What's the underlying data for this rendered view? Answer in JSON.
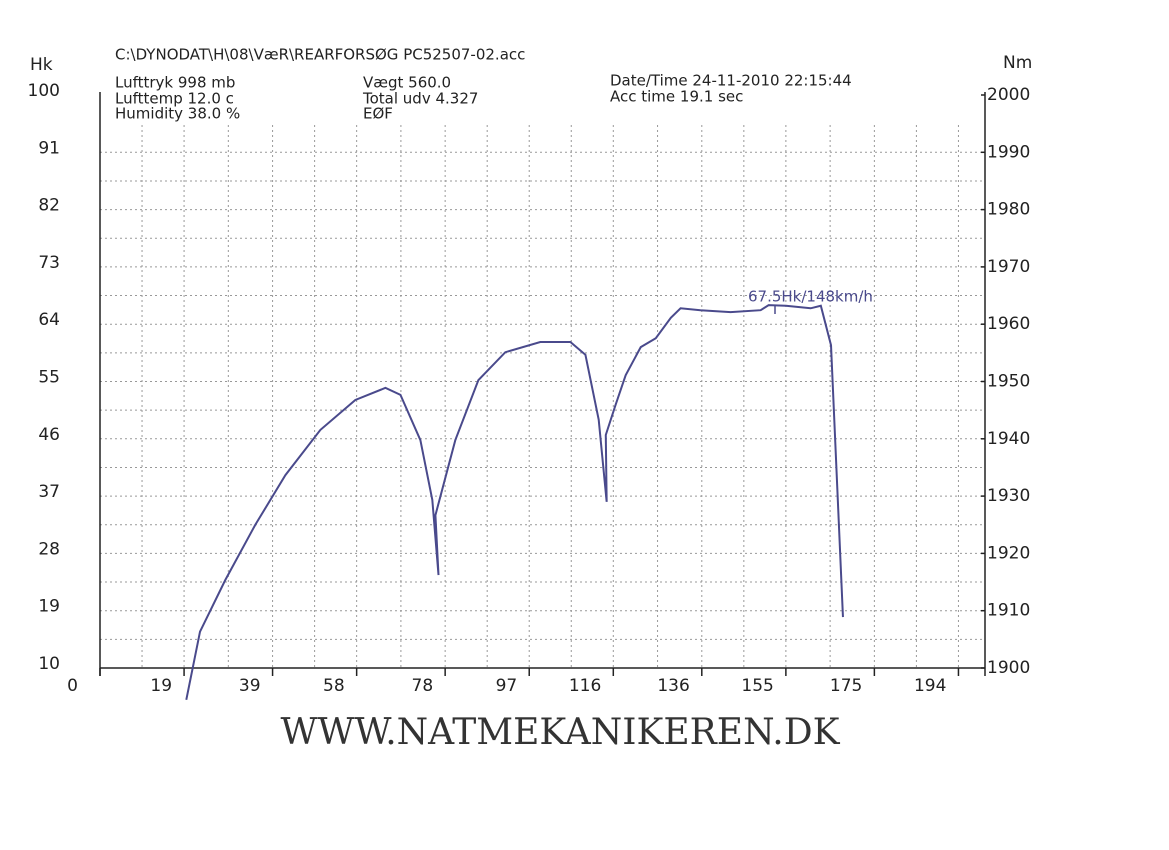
{
  "chart_data": {
    "type": "line",
    "file": "C:\\DYNODAT\\H\\08\\VæR\\REARFORSØG PC52507-02.acc",
    "info": [
      "Lufttryk  998 mb",
      "Lufttemp  12.0 c",
      "Humidity  38.0 %",
      "Vægt   560.0",
      "Total udv 4.327",
      "EØF",
      "Date/Time  24-11-2010 22:15:44",
      "Acc time  19.1 sec"
    ],
    "y_label": "Hk",
    "y2_label": "Nm",
    "annotation": "67.5Hk/148km/h",
    "footer": "WWW.NATMEKANIKEREN.DK",
    "xlim": [
      0,
      200
    ],
    "xticks": [
      0,
      19,
      39,
      58,
      78,
      97,
      116,
      136,
      155,
      175,
      194
    ],
    "ylim": [
      10,
      100
    ],
    "yticks": [
      10,
      19,
      28,
      37,
      46,
      55,
      64,
      73,
      82,
      91,
      100
    ],
    "y2lim": [
      1900,
      2000
    ],
    "y2ticks": [
      1900,
      1910,
      1920,
      1930,
      1940,
      1950,
      1960,
      1970,
      1980,
      1990,
      2000
    ],
    "grid": true,
    "series": [
      {
        "color": "#4a4a8c",
        "x": [
          19.5,
          22.6,
          28.3,
          35.1,
          41.9,
          49.8,
          57.7,
          64.5,
          67.9,
          72.4,
          75.1,
          76.5,
          75.8,
          80.3,
          85.5,
          91.6,
          99.5,
          106.3,
          109.7,
          112.7,
          114.5,
          114.3,
          116.5,
          118.8,
          122.2,
          125.6,
          129.0,
          131.2,
          135.7,
          142.5,
          149.3,
          151.1,
          155.0,
          160.6,
          162.9,
          165.2,
          167.9
        ],
        "values": [
          5.0,
          15.7,
          23.8,
          32.5,
          40.3,
          47.4,
          52.1,
          54.0,
          52.9,
          45.8,
          36.4,
          24.6,
          34.0,
          45.8,
          55.2,
          59.6,
          61.2,
          61.2,
          59.2,
          49.0,
          36.1,
          46.6,
          51.3,
          56.0,
          60.4,
          61.8,
          65.0,
          66.5,
          66.2,
          65.9,
          66.2,
          67.0,
          66.9,
          66.5,
          66.9,
          60.7,
          18.0
        ]
      }
    ]
  }
}
